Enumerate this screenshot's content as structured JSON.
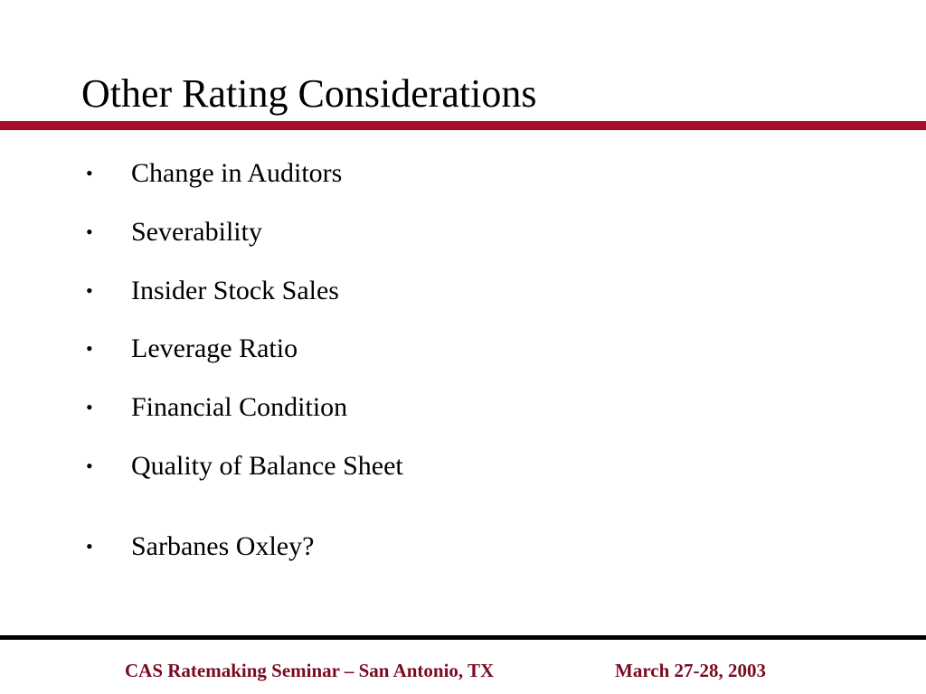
{
  "slide": {
    "title": "Other Rating Considerations",
    "accent_color": "#a50d2e",
    "bullet_symbol": "•",
    "bullets": [
      "Change in Auditors",
      "Severability",
      "Insider Stock Sales",
      "Leverage Ratio",
      "Financial Condition",
      "Quality of Balance Sheet",
      "Sarbanes Oxley?"
    ]
  },
  "footer": {
    "event": "CAS Ratemaking Seminar – San Antonio, TX",
    "date": "March 27-28, 2003",
    "text_color": "#7a0a22"
  }
}
